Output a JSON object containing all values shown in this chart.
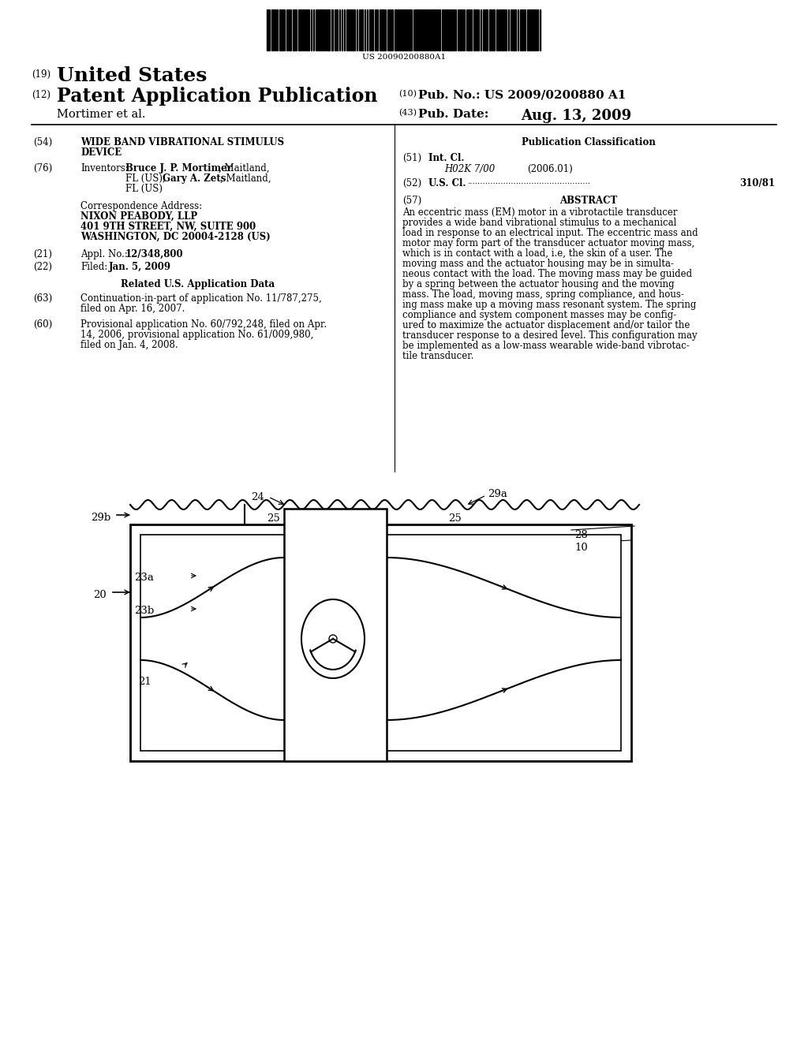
{
  "bg_color": "#ffffff",
  "barcode_text": "US 20090200880A1",
  "header_line1_num": "(19)",
  "header_line1_text": "United States",
  "header_line2_num": "(12)",
  "header_line2_text": "Patent Application Publication",
  "header_right1_num": "(10)",
  "header_right1_label": "Pub. No.:",
  "header_right1_val": "US 2009/0200880 A1",
  "header_name": "Mortimer et al.",
  "header_right2_num": "(43)",
  "header_right2_label": "Pub. Date:",
  "header_right2_val": "Aug. 13, 2009",
  "abstract_text": [
    "An eccentric mass (EM) motor in a vibrotactile transducer",
    "provides a wide band vibrational stimulus to a mechanical",
    "load in response to an electrical input. The eccentric mass and",
    "motor may form part of the transducer actuator moving mass,",
    "which is in contact with a load, i.e, the skin of a user. The",
    "moving mass and the actuator housing may be in simulta-",
    "neous contact with the load. The moving mass may be guided",
    "by a spring between the actuator housing and the moving",
    "mass. The load, moving mass, spring compliance, and hous-",
    "ing mass make up a moving mass resonant system. The spring",
    "compliance and system component masses may be config-",
    "ured to maximize the actuator displacement and/or tailor the",
    "transducer response to a desired level. This configuration may",
    "be implemented as a low-mass wearable wide-band vibrotac-",
    "tile transducer."
  ]
}
